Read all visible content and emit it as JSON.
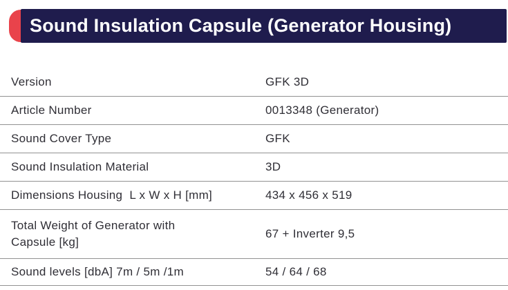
{
  "header": {
    "title": "Sound Insulation Capsule (Generator Housing)"
  },
  "colors": {
    "header_bg": "#1f1c4d",
    "accent_red": "#e9434b",
    "text": "#2f2e35",
    "divider": "#919191",
    "title_text": "#ffffff"
  },
  "spec_table": {
    "rows": [
      {
        "label": "Version",
        "value": "GFK 3D"
      },
      {
        "label": "Article Number",
        "value": "0013348 (Generator)"
      },
      {
        "label": "Sound Cover Type",
        "value": "GFK"
      },
      {
        "label": "Sound Insulation Material",
        "value": "3D"
      },
      {
        "label": "Dimensions Housing  L x W x H [mm]",
        "value": "434 x 456 x 519"
      },
      {
        "label": "Total Weight of Generator with\nCapsule [kg]",
        "value": "67 + Inverter 9,5"
      },
      {
        "label": "Sound levels [dbA] 7m / 5m /1m",
        "value": "54 / 64 / 68"
      }
    ]
  }
}
